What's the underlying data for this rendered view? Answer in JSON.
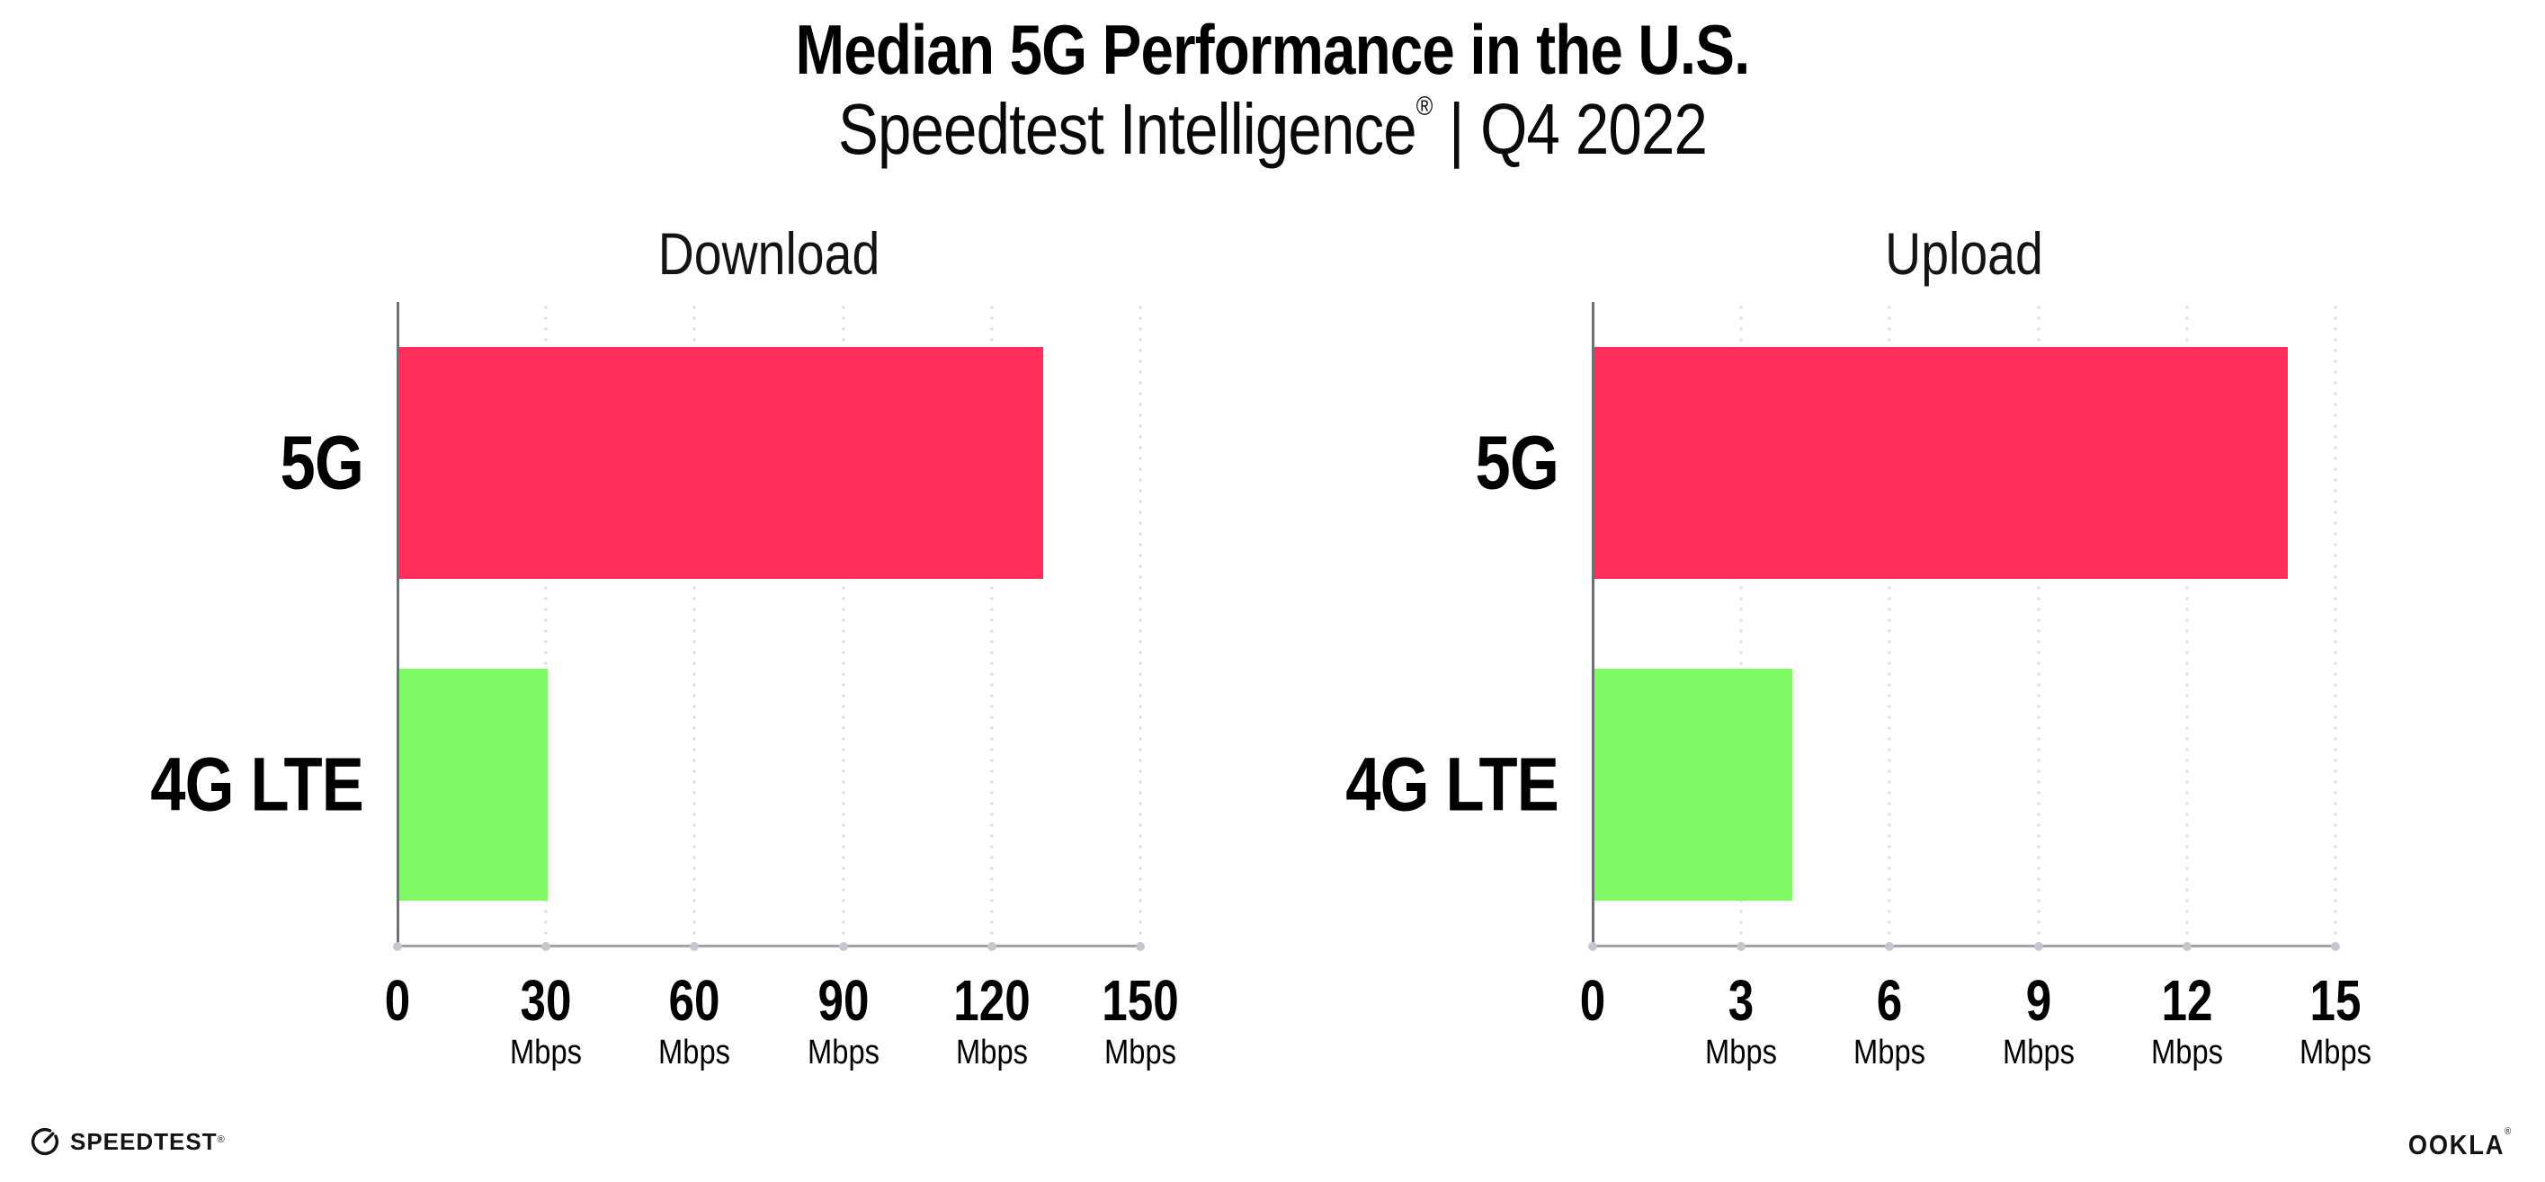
{
  "title": "Median 5G Performance in the U.S.",
  "subtitle": {
    "brand": "Speedtest Intelligence",
    "registered_mark": "®",
    "separator": "|",
    "period": "Q4 2022"
  },
  "chart_data": [
    {
      "type": "bar",
      "orientation": "horizontal",
      "title": "Download",
      "categories": [
        "5G",
        "4G LTE"
      ],
      "values": [
        130,
        30
      ],
      "value_unit": "Mbps",
      "xlim": [
        0,
        150
      ],
      "xticks": [
        0,
        30,
        60,
        90,
        120,
        150
      ],
      "xtick_unit_label": "Mbps",
      "bar_colors": [
        "#ff2e5b",
        "#80fa64"
      ],
      "grid": "vertical-dotted",
      "legend": "none"
    },
    {
      "type": "bar",
      "orientation": "horizontal",
      "title": "Upload",
      "categories": [
        "5G",
        "4G LTE"
      ],
      "values": [
        14,
        4
      ],
      "value_unit": "Mbps",
      "xlim": [
        0,
        15
      ],
      "xticks": [
        0,
        3,
        6,
        9,
        12,
        15
      ],
      "xtick_unit_label": "Mbps",
      "bar_colors": [
        "#ff2e5b",
        "#80fa64"
      ],
      "grid": "vertical-dotted",
      "legend": "none"
    }
  ],
  "footer": {
    "speedtest_wordmark": "SPEEDTEST",
    "speedtest_mark": "®",
    "speedtest_icon": "gauge-icon",
    "ookla_wordmark": "OOKLA",
    "ookla_mark": "®"
  },
  "colors": {
    "bar_5g": "#ff2e5b",
    "bar_4g_lte": "#80fa64",
    "axis_y": "#6f6f76",
    "axis_x": "#a2a2a8",
    "gridline": "#dcdce6",
    "text": "#000000"
  }
}
